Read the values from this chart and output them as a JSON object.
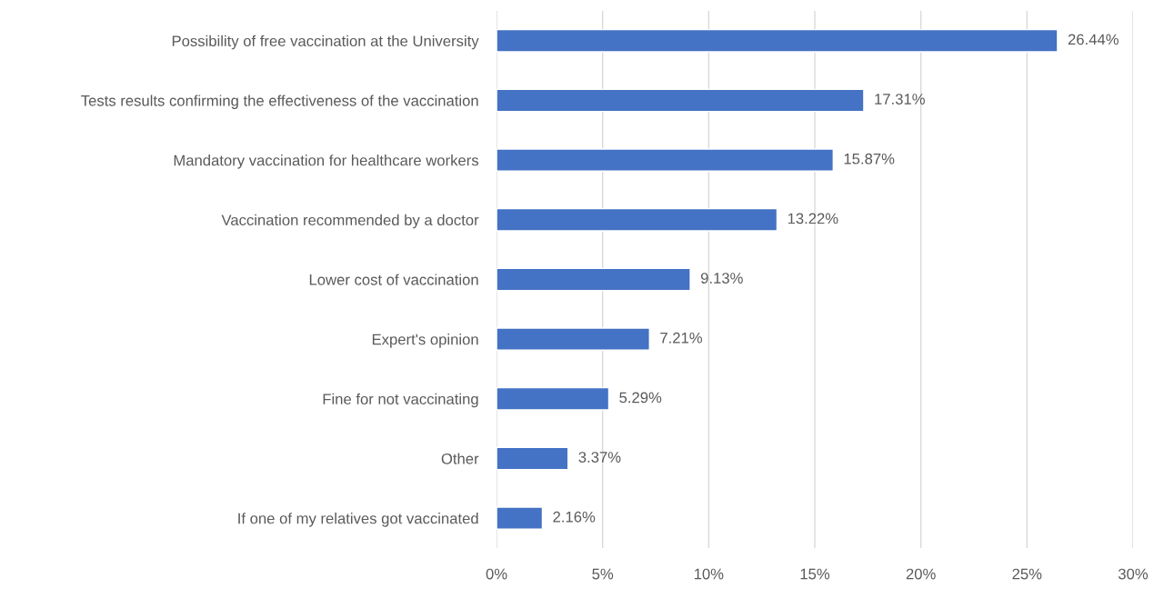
{
  "chart_data": {
    "type": "bar",
    "orientation": "horizontal",
    "categories": [
      "Possibility of free vaccination at the University",
      "Tests results confirming the effectiveness of the vaccination",
      "Mandatory vaccination for healthcare workers",
      "Vaccination recommended by a doctor",
      "Lower cost of vaccination",
      "Expert's opinion",
      "Fine for not vaccinating",
      "Other",
      "If one of my relatives got vaccinated"
    ],
    "values": [
      26.44,
      17.31,
      15.87,
      13.22,
      9.13,
      7.21,
      5.29,
      3.37,
      2.16
    ],
    "value_labels": [
      "26.44%",
      "17.31%",
      "15.87%",
      "13.22%",
      "9.13%",
      "7.21%",
      "5.29%",
      "3.37%",
      "2.16%"
    ],
    "color": "#4472c4",
    "xlim": [
      0,
      30
    ],
    "xticks": [
      {
        "value": 0,
        "label": "0%"
      },
      {
        "value": 5,
        "label": "5%"
      },
      {
        "value": 10,
        "label": "10%"
      },
      {
        "value": 15,
        "label": "15%"
      },
      {
        "value": 20,
        "label": "20%"
      },
      {
        "value": 25,
        "label": "25%"
      },
      {
        "value": 30,
        "label": "30%"
      }
    ],
    "grid": "x",
    "legend": false
  }
}
